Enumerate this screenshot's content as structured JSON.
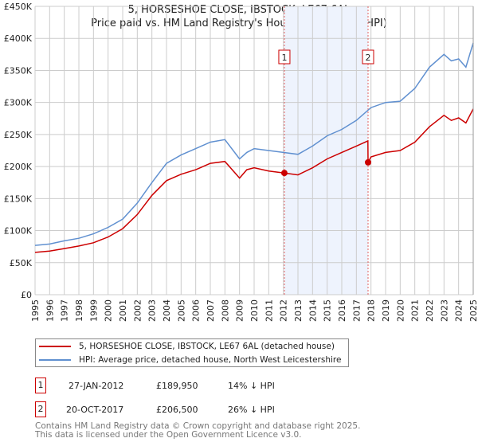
{
  "chart_data": {
    "type": "line",
    "title": "5, HORSESHOE CLOSE, IBSTOCK, LE67 6AL",
    "subtitle": "Price paid vs. HM Land Registry's House Price Index (HPI)",
    "xlim": [
      1995,
      2025
    ],
    "ylim": [
      0,
      450000
    ],
    "x_ticks": [
      "1995",
      "1996",
      "1997",
      "1998",
      "1999",
      "2000",
      "2001",
      "2002",
      "2003",
      "2004",
      "2005",
      "2006",
      "2007",
      "2008",
      "2009",
      "2010",
      "2011",
      "2012",
      "2013",
      "2014",
      "2015",
      "2016",
      "2017",
      "2018",
      "2019",
      "2020",
      "2021",
      "2022",
      "2023",
      "2024",
      "2025"
    ],
    "y_ticks": [
      "£0",
      "£50K",
      "£100K",
      "£150K",
      "£200K",
      "£250K",
      "£300K",
      "£350K",
      "£400K",
      "£450K"
    ],
    "series": [
      {
        "name": "5, HORSESHOE CLOSE, IBSTOCK, LE67 6AL (detached house)",
        "color": "#cc0000",
        "x": [
          1995,
          1996,
          1997,
          1998,
          1999,
          2000,
          2001,
          2002,
          2003,
          2004,
          2005,
          2006,
          2007,
          2008,
          2009,
          2009.5,
          2010,
          2011,
          2012.07,
          2013,
          2014,
          2015,
          2016,
          2017,
          2017.79,
          2017.8,
          2018,
          2019,
          2020,
          2021,
          2022,
          2023,
          2023.5,
          2024,
          2024.5,
          2025
        ],
        "y": [
          66000,
          68000,
          72000,
          76000,
          81000,
          90000,
          103000,
          125000,
          155000,
          178000,
          188000,
          195000,
          205000,
          208000,
          182000,
          195000,
          198000,
          193000,
          189950,
          187000,
          198000,
          212000,
          222000,
          232000,
          240000,
          206500,
          215000,
          222000,
          225000,
          238000,
          262000,
          280000,
          272000,
          276000,
          268000,
          290000
        ]
      },
      {
        "name": "HPI: Average price, detached house, North West Leicestershire",
        "color": "#6090d0",
        "x": [
          1995,
          1996,
          1997,
          1998,
          1999,
          2000,
          2001,
          2002,
          2003,
          2004,
          2005,
          2006,
          2007,
          2008,
          2009,
          2009.5,
          2010,
          2011,
          2012,
          2013,
          2014,
          2015,
          2016,
          2017,
          2018,
          2019,
          2020,
          2021,
          2022,
          2023,
          2023.5,
          2024,
          2024.5,
          2025
        ],
        "y": [
          77000,
          79000,
          84000,
          88000,
          95000,
          105000,
          118000,
          143000,
          175000,
          205000,
          218000,
          228000,
          238000,
          242000,
          212000,
          222000,
          228000,
          225000,
          222000,
          219000,
          232000,
          248000,
          258000,
          272000,
          292000,
          300000,
          302000,
          322000,
          355000,
          375000,
          365000,
          368000,
          355000,
          393000
        ]
      }
    ],
    "annotations": [
      {
        "label": "1",
        "x": 2012.07
      },
      {
        "label": "2",
        "x": 2017.8
      }
    ],
    "shaded_range": [
      2012.07,
      2017.8
    ]
  },
  "legend": {
    "red": "5, HORSESHOE CLOSE, IBSTOCK, LE67 6AL (detached house)",
    "blue": "HPI: Average price, detached house, North West Leicestershire"
  },
  "transactions": [
    {
      "num": "1",
      "date": "27-JAN-2012",
      "price": "£189,950",
      "diff": "14% ↓ HPI"
    },
    {
      "num": "2",
      "date": "20-OCT-2017",
      "price": "£206,500",
      "diff": "26% ↓ HPI"
    }
  ],
  "footer": [
    "Contains HM Land Registry data © Crown copyright and database right 2025.",
    "This data is licensed under the Open Government Licence v3.0."
  ]
}
